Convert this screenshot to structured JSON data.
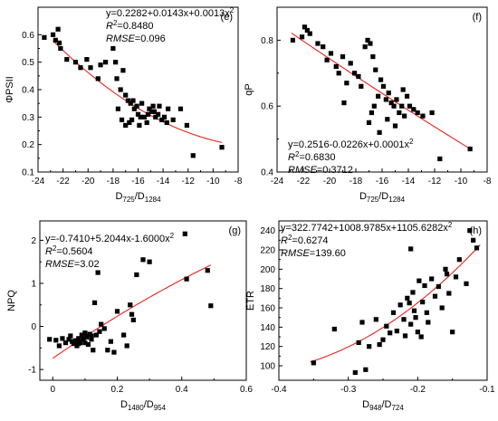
{
  "chart_data": [
    {
      "id": "e",
      "type": "scatter",
      "panel_label": "(e)",
      "xlabel": "D",
      "xlabel_sub1": "725",
      "xlabel_sep": "/D",
      "xlabel_sub2": "1284",
      "ylabel": "ΦPSII",
      "xlim": [
        -24,
        -8
      ],
      "ylim": [
        0.1,
        0.7
      ],
      "xticks": [
        -24,
        -22,
        -20,
        -18,
        -16,
        -14,
        -12,
        -10,
        -8
      ],
      "yticks": [
        0.1,
        0.2,
        0.3,
        0.4,
        0.5,
        0.6
      ],
      "equation": "y=0.2282+0.0143x+0.0013x",
      "equation_sup": "2",
      "r2_label": "R",
      "r2_sup": "2",
      "r2_value": "=0.8480",
      "rmse_label": "RMSE",
      "rmse_value": "=0.096",
      "fit": {
        "coef": [
          0.2282,
          0.0143,
          0.0013
        ],
        "x_range": [
          -22.8,
          -9.3
        ]
      },
      "points": [
        [
          -23.5,
          0.59
        ],
        [
          -22.8,
          0.6
        ],
        [
          -22.6,
          0.58
        ],
        [
          -22.4,
          0.62
        ],
        [
          -22.3,
          0.57
        ],
        [
          -22.2,
          0.55
        ],
        [
          -21.7,
          0.51
        ],
        [
          -21.0,
          0.5
        ],
        [
          -20.6,
          0.48
        ],
        [
          -20.1,
          0.51
        ],
        [
          -19.8,
          0.48
        ],
        [
          -19.2,
          0.44
        ],
        [
          -19.0,
          0.49
        ],
        [
          -18.6,
          0.5
        ],
        [
          -18.0,
          0.55
        ],
        [
          -17.8,
          0.5
        ],
        [
          -17.7,
          0.44
        ],
        [
          -17.4,
          0.4
        ],
        [
          -17.2,
          0.47
        ],
        [
          -17.0,
          0.38
        ],
        [
          -16.8,
          0.36
        ],
        [
          -16.6,
          0.35
        ],
        [
          -16.5,
          0.29
        ],
        [
          -16.3,
          0.33
        ],
        [
          -16.1,
          0.34
        ],
        [
          -16.0,
          0.31
        ],
        [
          -15.8,
          0.3
        ],
        [
          -15.7,
          0.35
        ],
        [
          -15.5,
          0.3
        ],
        [
          -15.3,
          0.28
        ],
        [
          -15.1,
          0.33
        ],
        [
          -14.9,
          0.32
        ],
        [
          -14.8,
          0.34
        ],
        [
          -14.6,
          0.3
        ],
        [
          -14.4,
          0.31
        ],
        [
          -14.3,
          0.34
        ],
        [
          -14.1,
          0.29
        ],
        [
          -13.9,
          0.3
        ],
        [
          -13.6,
          0.33
        ],
        [
          -13.2,
          0.29
        ],
        [
          -12.6,
          0.33
        ],
        [
          -12.1,
          0.27
        ],
        [
          -11.6,
          0.16
        ],
        [
          -9.3,
          0.19
        ],
        [
          -17.6,
          0.33
        ],
        [
          -17.3,
          0.29
        ],
        [
          -17.0,
          0.27
        ],
        [
          -16.7,
          0.28
        ],
        [
          -16.4,
          0.36
        ],
        [
          -15.9,
          0.27
        ],
        [
          -15.2,
          0.31
        ],
        [
          -14.7,
          0.32
        ],
        [
          -13.7,
          0.28
        ]
      ]
    },
    {
      "id": "f",
      "type": "scatter",
      "panel_label": "(f)",
      "xlabel": "D",
      "xlabel_sub1": "725",
      "xlabel_sep": "/D",
      "xlabel_sub2": "1284",
      "ylabel": "qP",
      "xlim": [
        -24,
        -8
      ],
      "ylim": [
        0.4,
        0.9
      ],
      "xticks": [
        -24,
        -22,
        -20,
        -18,
        -16,
        -14,
        -12,
        -10,
        -8
      ],
      "yticks": [
        0.4,
        0.6,
        0.8
      ],
      "equation": "y=0.2516-0.0226x+0.0001x",
      "equation_sup": "2",
      "r2_label": "R",
      "r2_sup": "2",
      "r2_value": "=0.6830",
      "rmse_label": "RMSE",
      "rmse_value": "=0.3712",
      "fit": {
        "coef": [
          0.2516,
          -0.0226,
          0.0001
        ],
        "x_range": [
          -22.9,
          -9.3
        ]
      },
      "points": [
        [
          -22.8,
          0.8
        ],
        [
          -22.1,
          0.81
        ],
        [
          -21.9,
          0.84
        ],
        [
          -21.7,
          0.83
        ],
        [
          -21.5,
          0.82
        ],
        [
          -20.9,
          0.79
        ],
        [
          -20.5,
          0.78
        ],
        [
          -20.2,
          0.74
        ],
        [
          -19.9,
          0.76
        ],
        [
          -19.5,
          0.72
        ],
        [
          -19.3,
          0.7
        ],
        [
          -19.0,
          0.75
        ],
        [
          -18.7,
          0.67
        ],
        [
          -18.4,
          0.73
        ],
        [
          -18.1,
          0.7
        ],
        [
          -17.8,
          0.69
        ],
        [
          -17.6,
          0.66
        ],
        [
          -17.3,
          0.78
        ],
        [
          -17.1,
          0.8
        ],
        [
          -16.9,
          0.79
        ],
        [
          -16.7,
          0.75
        ],
        [
          -16.5,
          0.71
        ],
        [
          -16.3,
          0.63
        ],
        [
          -16.1,
          0.68
        ],
        [
          -15.9,
          0.66
        ],
        [
          -15.7,
          0.62
        ],
        [
          -15.5,
          0.64
        ],
        [
          -15.3,
          0.61
        ],
        [
          -15.1,
          0.6
        ],
        [
          -14.9,
          0.62
        ],
        [
          -14.7,
          0.58
        ],
        [
          -14.5,
          0.6
        ],
        [
          -14.3,
          0.57
        ],
        [
          -14.1,
          0.63
        ],
        [
          -13.9,
          0.6
        ],
        [
          -13.6,
          0.59
        ],
        [
          -13.3,
          0.58
        ],
        [
          -12.9,
          0.57
        ],
        [
          -12.2,
          0.58
        ],
        [
          -11.6,
          0.44
        ],
        [
          -9.3,
          0.47
        ],
        [
          -17.0,
          0.55
        ],
        [
          -16.8,
          0.58
        ],
        [
          -16.6,
          0.6
        ],
        [
          -16.2,
          0.52
        ],
        [
          -15.6,
          0.56
        ],
        [
          -15.0,
          0.54
        ],
        [
          -14.4,
          0.65
        ],
        [
          -18.9,
          0.61
        ]
      ]
    },
    {
      "id": "g",
      "type": "scatter",
      "panel_label": "(g)",
      "xlabel": "D",
      "xlabel_sub1": "1480",
      "xlabel_sep": "/D",
      "xlabel_sub2": "954",
      "ylabel": "NPQ",
      "xlim": [
        -0.04,
        0.6
      ],
      "ylim": [
        -1.25,
        2.45
      ],
      "xticks": [
        0,
        0.2,
        0.4,
        0.6
      ],
      "yticks": [
        -1,
        0,
        1,
        2
      ],
      "equation": "y=-0.7410+5.2044x-1.6000x",
      "equation_sup": "2",
      "r2_label": "R",
      "r2_sup": "2",
      "r2_value": "=0.5604",
      "rmse_label": "RMSE",
      "rmse_value": "=3.02",
      "fit": {
        "coef": [
          -0.741,
          5.2044,
          -1.6
        ],
        "x_range": [
          0.0,
          0.49
        ]
      },
      "points": [
        [
          -0.01,
          -0.3
        ],
        [
          0.01,
          -0.32
        ],
        [
          0.02,
          -0.45
        ],
        [
          0.03,
          -0.28
        ],
        [
          0.04,
          -0.38
        ],
        [
          0.05,
          -0.3
        ],
        [
          0.055,
          -0.22
        ],
        [
          0.06,
          -0.35
        ],
        [
          0.065,
          -0.4
        ],
        [
          0.07,
          -0.33
        ],
        [
          0.075,
          -0.45
        ],
        [
          0.08,
          -0.28
        ],
        [
          0.085,
          -0.38
        ],
        [
          0.09,
          -0.2
        ],
        [
          0.095,
          -0.3
        ],
        [
          0.1,
          -0.15
        ],
        [
          0.105,
          -0.25
        ],
        [
          0.11,
          -0.42
        ],
        [
          0.115,
          -0.18
        ],
        [
          0.12,
          -0.3
        ],
        [
          0.125,
          -0.55
        ],
        [
          0.13,
          0.55
        ],
        [
          0.135,
          -0.2
        ],
        [
          0.14,
          1.25
        ],
        [
          0.145,
          -0.12
        ],
        [
          0.15,
          0.05
        ],
        [
          0.16,
          -0.05
        ],
        [
          0.17,
          -0.55
        ],
        [
          0.18,
          -0.35
        ],
        [
          0.19,
          -0.6
        ],
        [
          0.2,
          0.35
        ],
        [
          0.22,
          -0.2
        ],
        [
          0.23,
          -0.45
        ],
        [
          0.24,
          0.5
        ],
        [
          0.245,
          0.28
        ],
        [
          0.25,
          0.15
        ],
        [
          0.26,
          1.2
        ],
        [
          0.28,
          1.55
        ],
        [
          0.3,
          1.5
        ],
        [
          0.41,
          2.15
        ],
        [
          0.415,
          1.1
        ],
        [
          0.48,
          1.3
        ],
        [
          0.49,
          0.48
        ],
        [
          0.1,
          -0.38
        ],
        [
          0.12,
          -0.22
        ],
        [
          0.08,
          -0.4
        ]
      ]
    },
    {
      "id": "h",
      "type": "scatter",
      "panel_label": "(h)",
      "xlabel": "D",
      "xlabel_sub1": "948",
      "xlabel_sep": "/D",
      "xlabel_sub2": "724",
      "ylabel": "ETR",
      "xlim": [
        -0.4,
        -0.1
      ],
      "ylim": [
        85,
        250
      ],
      "xticks": [
        -0.4,
        -0.3,
        -0.2,
        -0.1
      ],
      "yticks": [
        100,
        120,
        140,
        160,
        180,
        200,
        220,
        240
      ],
      "equation": "y=322.7742+1008.9785x+1105.6282x",
      "equation_sup": "2",
      "r2_label": "R",
      "r2_sup": "2",
      "r2_value": "=0.6274",
      "rmse_label": "RMSE",
      "rmse_value": "=139.60",
      "fit": {
        "coef": [
          322.7742,
          1008.9785,
          1105.6282
        ],
        "x_range": [
          -0.355,
          -0.11
        ]
      },
      "points": [
        [
          -0.35,
          103
        ],
        [
          -0.32,
          138
        ],
        [
          -0.29,
          93
        ],
        [
          -0.285,
          124
        ],
        [
          -0.28,
          145
        ],
        [
          -0.275,
          96
        ],
        [
          -0.27,
          120
        ],
        [
          -0.26,
          148
        ],
        [
          -0.255,
          122
        ],
        [
          -0.25,
          127
        ],
        [
          -0.245,
          141
        ],
        [
          -0.24,
          134
        ],
        [
          -0.235,
          155
        ],
        [
          -0.23,
          136
        ],
        [
          -0.225,
          163
        ],
        [
          -0.22,
          148
        ],
        [
          -0.218,
          131
        ],
        [
          -0.215,
          170
        ],
        [
          -0.212,
          165
        ],
        [
          -0.21,
          143
        ],
        [
          -0.207,
          176
        ],
        [
          -0.205,
          157
        ],
        [
          -0.203,
          150
        ],
        [
          -0.2,
          135
        ],
        [
          -0.198,
          188
        ],
        [
          -0.195,
          130
        ],
        [
          -0.193,
          166
        ],
        [
          -0.19,
          183
        ],
        [
          -0.187,
          155
        ],
        [
          -0.185,
          145
        ],
        [
          -0.18,
          190
        ],
        [
          -0.175,
          172
        ],
        [
          -0.17,
          182
        ],
        [
          -0.165,
          160
        ],
        [
          -0.16,
          200
        ],
        [
          -0.158,
          195
        ],
        [
          -0.155,
          175
        ],
        [
          -0.15,
          135
        ],
        [
          -0.145,
          192
        ],
        [
          -0.14,
          210
        ],
        [
          -0.13,
          185
        ],
        [
          -0.125,
          240
        ],
        [
          -0.12,
          230
        ],
        [
          -0.115,
          222
        ],
        [
          -0.21,
          221
        ]
      ]
    }
  ]
}
